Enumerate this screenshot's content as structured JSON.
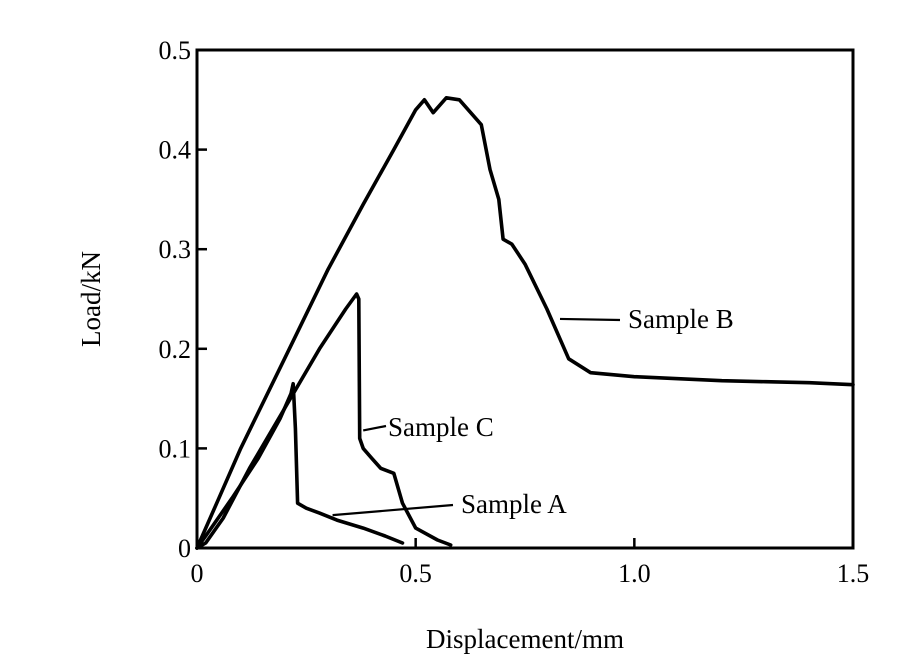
{
  "chart_data": {
    "type": "line",
    "title": "",
    "xlabel": "Displacement/mm",
    "ylabel": "Load/kN",
    "xlim": [
      0,
      1.5
    ],
    "ylim": [
      0,
      0.5
    ],
    "x_ticks": [
      {
        "value": 0,
        "label": "0"
      },
      {
        "value": 0.5,
        "label": "0.5"
      },
      {
        "value": 1.0,
        "label": "1.0"
      },
      {
        "value": 1.5,
        "label": "1.5"
      }
    ],
    "y_ticks": [
      {
        "value": 0,
        "label": "0"
      },
      {
        "value": 0.1,
        "label": "0.1"
      },
      {
        "value": 0.2,
        "label": "0.2"
      },
      {
        "value": 0.3,
        "label": "0.3"
      },
      {
        "value": 0.4,
        "label": "0.4"
      },
      {
        "value": 0.5,
        "label": "0.5"
      }
    ],
    "grid": false,
    "legend": "none (series labeled directly on the curves)",
    "line_color": "#000000",
    "series": [
      {
        "name": "Sample A",
        "x": [
          0,
          0.02,
          0.08,
          0.14,
          0.19,
          0.215,
          0.22,
          0.225,
          0.23,
          0.25,
          0.28,
          0.32,
          0.38,
          0.43,
          0.47
        ],
        "y": [
          0,
          0.012,
          0.05,
          0.09,
          0.13,
          0.155,
          0.165,
          0.12,
          0.045,
          0.04,
          0.035,
          0.028,
          0.02,
          0.012,
          0.005
        ]
      },
      {
        "name": "Sample B",
        "x": [
          0,
          0.05,
          0.1,
          0.2,
          0.3,
          0.38,
          0.45,
          0.5,
          0.52,
          0.54,
          0.57,
          0.6,
          0.63,
          0.65,
          0.67,
          0.69,
          0.7,
          0.72,
          0.75,
          0.8,
          0.85,
          0.9,
          1.0,
          1.1,
          1.2,
          1.3,
          1.4,
          1.5
        ],
        "y": [
          0,
          0.05,
          0.1,
          0.19,
          0.28,
          0.345,
          0.4,
          0.44,
          0.45,
          0.437,
          0.452,
          0.45,
          0.435,
          0.425,
          0.38,
          0.35,
          0.31,
          0.305,
          0.285,
          0.24,
          0.19,
          0.176,
          0.172,
          0.17,
          0.168,
          0.167,
          0.166,
          0.164
        ]
      },
      {
        "name": "Sample C",
        "x": [
          0,
          0.02,
          0.06,
          0.12,
          0.2,
          0.28,
          0.34,
          0.365,
          0.37,
          0.372,
          0.38,
          0.4,
          0.42,
          0.45,
          0.47,
          0.5,
          0.55,
          0.58
        ],
        "y": [
          0,
          0.005,
          0.03,
          0.08,
          0.14,
          0.2,
          0.24,
          0.255,
          0.25,
          0.11,
          0.1,
          0.09,
          0.08,
          0.075,
          0.045,
          0.02,
          0.008,
          0.003
        ]
      }
    ],
    "annotations": [
      {
        "series": "Sample A",
        "text": "Sample A",
        "anchor": {
          "x": 0.31,
          "y": 0.033
        }
      },
      {
        "series": "Sample B",
        "text": "Sample B",
        "anchor": {
          "x": 0.83,
          "y": 0.23
        }
      },
      {
        "series": "Sample C",
        "text": "Sample C",
        "anchor": {
          "x": 0.38,
          "y": 0.118
        }
      }
    ]
  }
}
